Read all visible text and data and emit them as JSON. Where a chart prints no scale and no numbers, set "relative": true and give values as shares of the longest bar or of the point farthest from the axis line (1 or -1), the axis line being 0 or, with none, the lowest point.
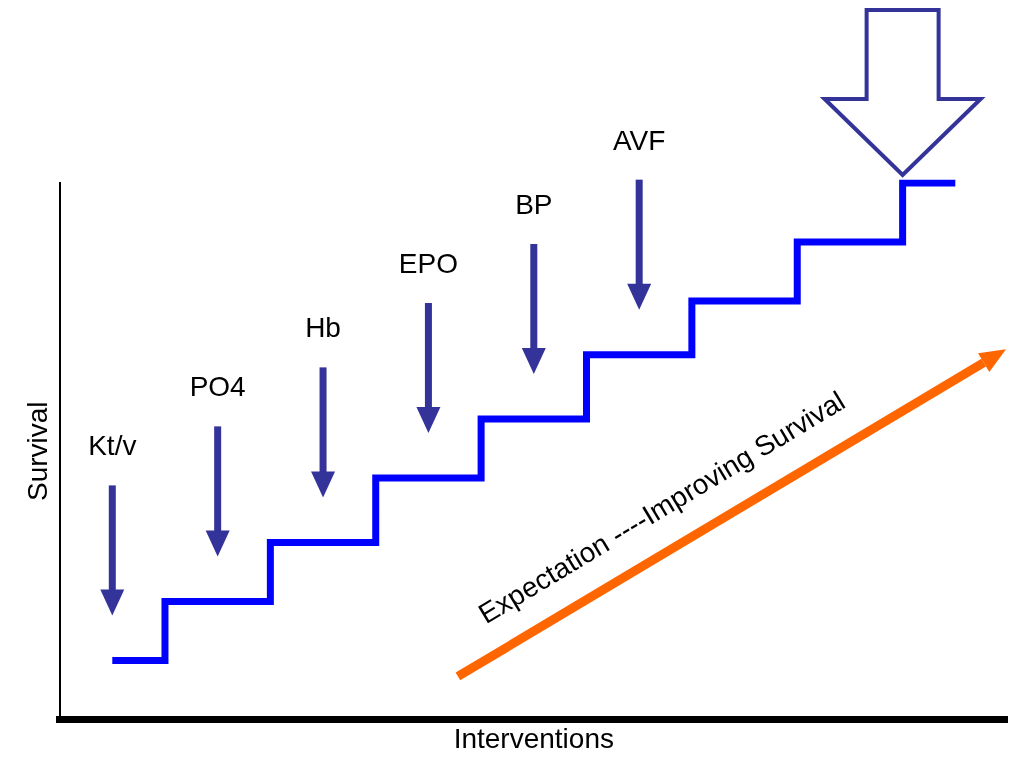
{
  "chart_data": {
    "type": "step",
    "relative": true,
    "xlabel": "Interventions",
    "ylabel": "Survival",
    "categories": [
      null,
      null,
      null,
      null,
      null,
      null,
      null,
      null,
      null
    ],
    "series": [
      {
        "color": "#0000ff",
        "values": [
          0.11,
          0.22,
          0.33,
          0.45,
          0.56,
          0.68,
          0.78,
          0.89,
          1
        ]
      }
    ],
    "annotations": [
      "Kt/v",
      "PO4",
      "Hb",
      "EPO",
      "BP",
      "AVF",
      "Expectation ----Improving Survival"
    ],
    "grid": false,
    "legend": false,
    "marker": "none",
    "line_style": "solid"
  }
}
